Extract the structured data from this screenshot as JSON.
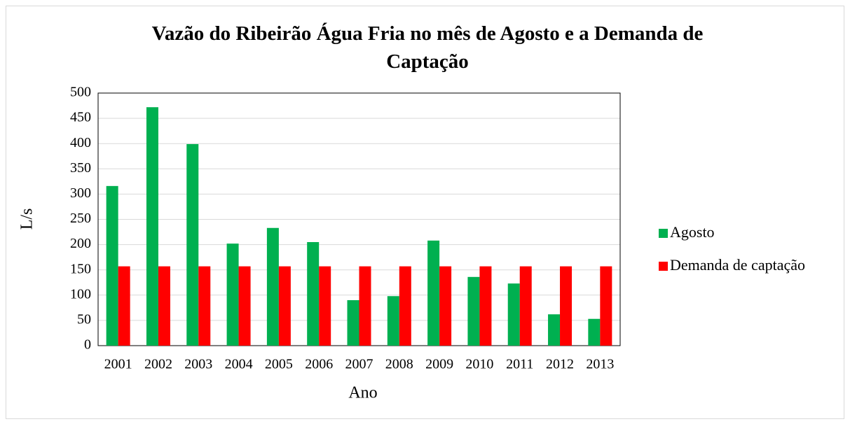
{
  "chart_data": {
    "type": "bar",
    "title": "Vazão do Ribeirão Água Fria no mês de Agosto e a Demanda de Captação",
    "x_label": "Ano",
    "y_label": "L/s",
    "categories": [
      "2001",
      "2002",
      "2003",
      "2004",
      "2005",
      "2006",
      "2007",
      "2008",
      "2009",
      "2010",
      "2011",
      "2012",
      "2013"
    ],
    "series": [
      {
        "name": "Agosto",
        "color": "#00b050",
        "values": [
          316,
          472,
          399,
          202,
          233,
          205,
          90,
          98,
          208,
          136,
          123,
          62,
          53
        ]
      },
      {
        "name": "Demanda de captação",
        "color": "#ff0000",
        "values": [
          157,
          157,
          157,
          157,
          157,
          157,
          157,
          157,
          157,
          157,
          157,
          157,
          157
        ]
      }
    ],
    "ylim": [
      0,
      500
    ],
    "yticks": [
      0,
      50,
      100,
      150,
      200,
      250,
      300,
      350,
      400,
      450,
      500
    ],
    "grid": true,
    "legend": "right"
  }
}
